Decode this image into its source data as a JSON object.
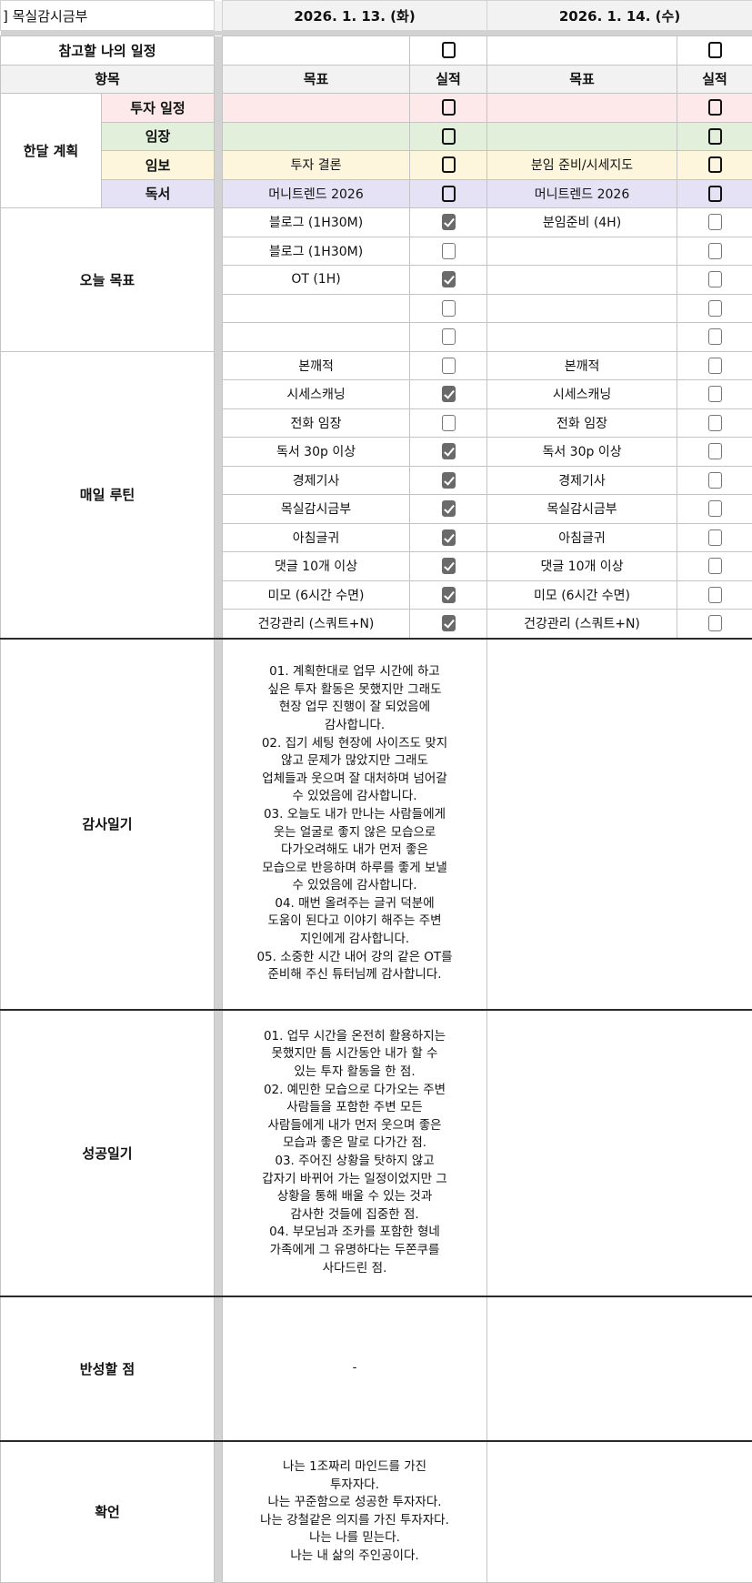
{
  "header": {
    "title": "] 목실감시금부",
    "dates": [
      "2026. 1. 13. (화)",
      "2026. 1. 14. (수)"
    ]
  },
  "reference": {
    "label": "참고할 나의 일정",
    "days": [
      {
        "goal": "",
        "checked": false
      },
      {
        "goal": "",
        "checked": false
      }
    ]
  },
  "columns": {
    "item": "항목",
    "goal": "목표",
    "result": "실적"
  },
  "monthly": {
    "label": "한달 계획",
    "items": [
      {
        "label": "투자 일정",
        "color": "#fde9e9",
        "days": [
          {
            "goal": "",
            "checked": false
          },
          {
            "goal": "",
            "checked": false
          }
        ]
      },
      {
        "label": "임장",
        "color": "#e2efda",
        "days": [
          {
            "goal": "",
            "checked": false
          },
          {
            "goal": "",
            "checked": false
          }
        ]
      },
      {
        "label": "임보",
        "color": "#fef5dd",
        "days": [
          {
            "goal": "투자 결론",
            "checked": false
          },
          {
            "goal": "분임 준비/시세지도",
            "checked": false
          }
        ]
      },
      {
        "label": "독서",
        "color": "#e6e2f5",
        "days": [
          {
            "goal": "머니트렌드 2026",
            "checked": false
          },
          {
            "goal": "머니트렌드 2026",
            "checked": false
          }
        ]
      }
    ]
  },
  "today": {
    "label": "오늘 목표",
    "rows": [
      [
        {
          "goal": "블로그 (1H30M)",
          "checked": true
        },
        {
          "goal": "분임준비 (4H)",
          "checked": false
        }
      ],
      [
        {
          "goal": "블로그 (1H30M)",
          "checked": false
        },
        {
          "goal": "",
          "checked": false
        }
      ],
      [
        {
          "goal": "OT (1H)",
          "checked": true
        },
        {
          "goal": "",
          "checked": false
        }
      ],
      [
        {
          "goal": "",
          "checked": false
        },
        {
          "goal": "",
          "checked": false
        }
      ],
      [
        {
          "goal": "",
          "checked": false
        },
        {
          "goal": "",
          "checked": false
        }
      ]
    ]
  },
  "routine": {
    "label": "매일 루틴",
    "rows": [
      [
        {
          "goal": "본깨적",
          "checked": false
        },
        {
          "goal": "본깨적",
          "checked": false
        }
      ],
      [
        {
          "goal": "시세스캐닝",
          "checked": true
        },
        {
          "goal": "시세스캐닝",
          "checked": false
        }
      ],
      [
        {
          "goal": "전화 임장",
          "checked": false
        },
        {
          "goal": "전화 임장",
          "checked": false
        }
      ],
      [
        {
          "goal": "독서 30p 이상",
          "checked": true
        },
        {
          "goal": "독서 30p 이상",
          "checked": false
        }
      ],
      [
        {
          "goal": "경제기사",
          "checked": true
        },
        {
          "goal": "경제기사",
          "checked": false
        }
      ],
      [
        {
          "goal": "목실감시금부",
          "checked": true
        },
        {
          "goal": "목실감시금부",
          "checked": false
        }
      ],
      [
        {
          "goal": "아침글귀",
          "checked": true
        },
        {
          "goal": "아침글귀",
          "checked": false
        }
      ],
      [
        {
          "goal": "댓글 10개 이상",
          "checked": true
        },
        {
          "goal": "댓글 10개 이상",
          "checked": false
        }
      ],
      [
        {
          "goal": "미모 (6시간 수면)",
          "checked": true
        },
        {
          "goal": "미모 (6시간 수면)",
          "checked": false
        }
      ],
      [
        {
          "goal": "건강관리 (스쿼트+N)",
          "checked": true
        },
        {
          "goal": "건강관리 (스쿼트+N)",
          "checked": false
        }
      ]
    ]
  },
  "journals": [
    {
      "label": "감사일기",
      "days": [
        "01. 계획한대로 업무 시간에 하고\n싶은 투자 활동은 못했지만 그래도\n현장 업무 진행이 잘 되었음에\n감사합니다.\n02. 집기 세팅 현장에 사이즈도 맞지\n않고 문제가 많았지만 그래도\n업체들과 웃으며 잘 대처하며 넘어갈\n수 있었음에 감사합니다.\n03. 오늘도 내가 만나는 사람들에게\n웃는 얼굴로 좋지 않은 모습으로\n다가오려해도 내가 먼저 좋은\n모습으로 반응하며 하루를 좋게 보낼\n수 있었음에 감사합니다.\n04. 매번 올려주는 글귀 덕분에\n도움이 된다고 이야기 해주는 주변\n지인에게 감사합니다.\n05. 소중한 시간 내어 강의 같은 OT를\n준비해 주신 튜터님께 감사합니다.",
        ""
      ]
    },
    {
      "label": "성공일기",
      "days": [
        "01. 업무 시간을 온전히 활용하지는\n못했지만 틈 시간동안 내가 할 수\n있는 투자 활동을 한 점.\n02. 예민한 모습으로 다가오는 주변\n사람들을 포함한 주변 모든\n사람들에게 내가 먼저 웃으며 좋은\n모습과 좋은 말로 다가간 점.\n03. 주어진 상황을 탓하지 않고\n갑자기 바뀌어 가는 일정이었지만 그\n상황을 통해 배울 수 있는 것과\n감사한 것들에 집중한 점.\n04. 부모님과 조카를 포함한 형네\n가족에게 그 유명하다는 두쫀쿠를\n사다드린 점.",
        ""
      ]
    },
    {
      "label": "반성할 점",
      "days": [
        "-",
        ""
      ]
    },
    {
      "label": "확언",
      "days": [
        "나는 1조짜리 마인드를 가진\n투자자다.\n나는 꾸준함으로 성공한 투자자다.\n나는 강철같은 의지를 가진 투자자다.\n나는 나를 믿는다.\n나는 내 삶의 주인공이다.",
        ""
      ]
    }
  ]
}
